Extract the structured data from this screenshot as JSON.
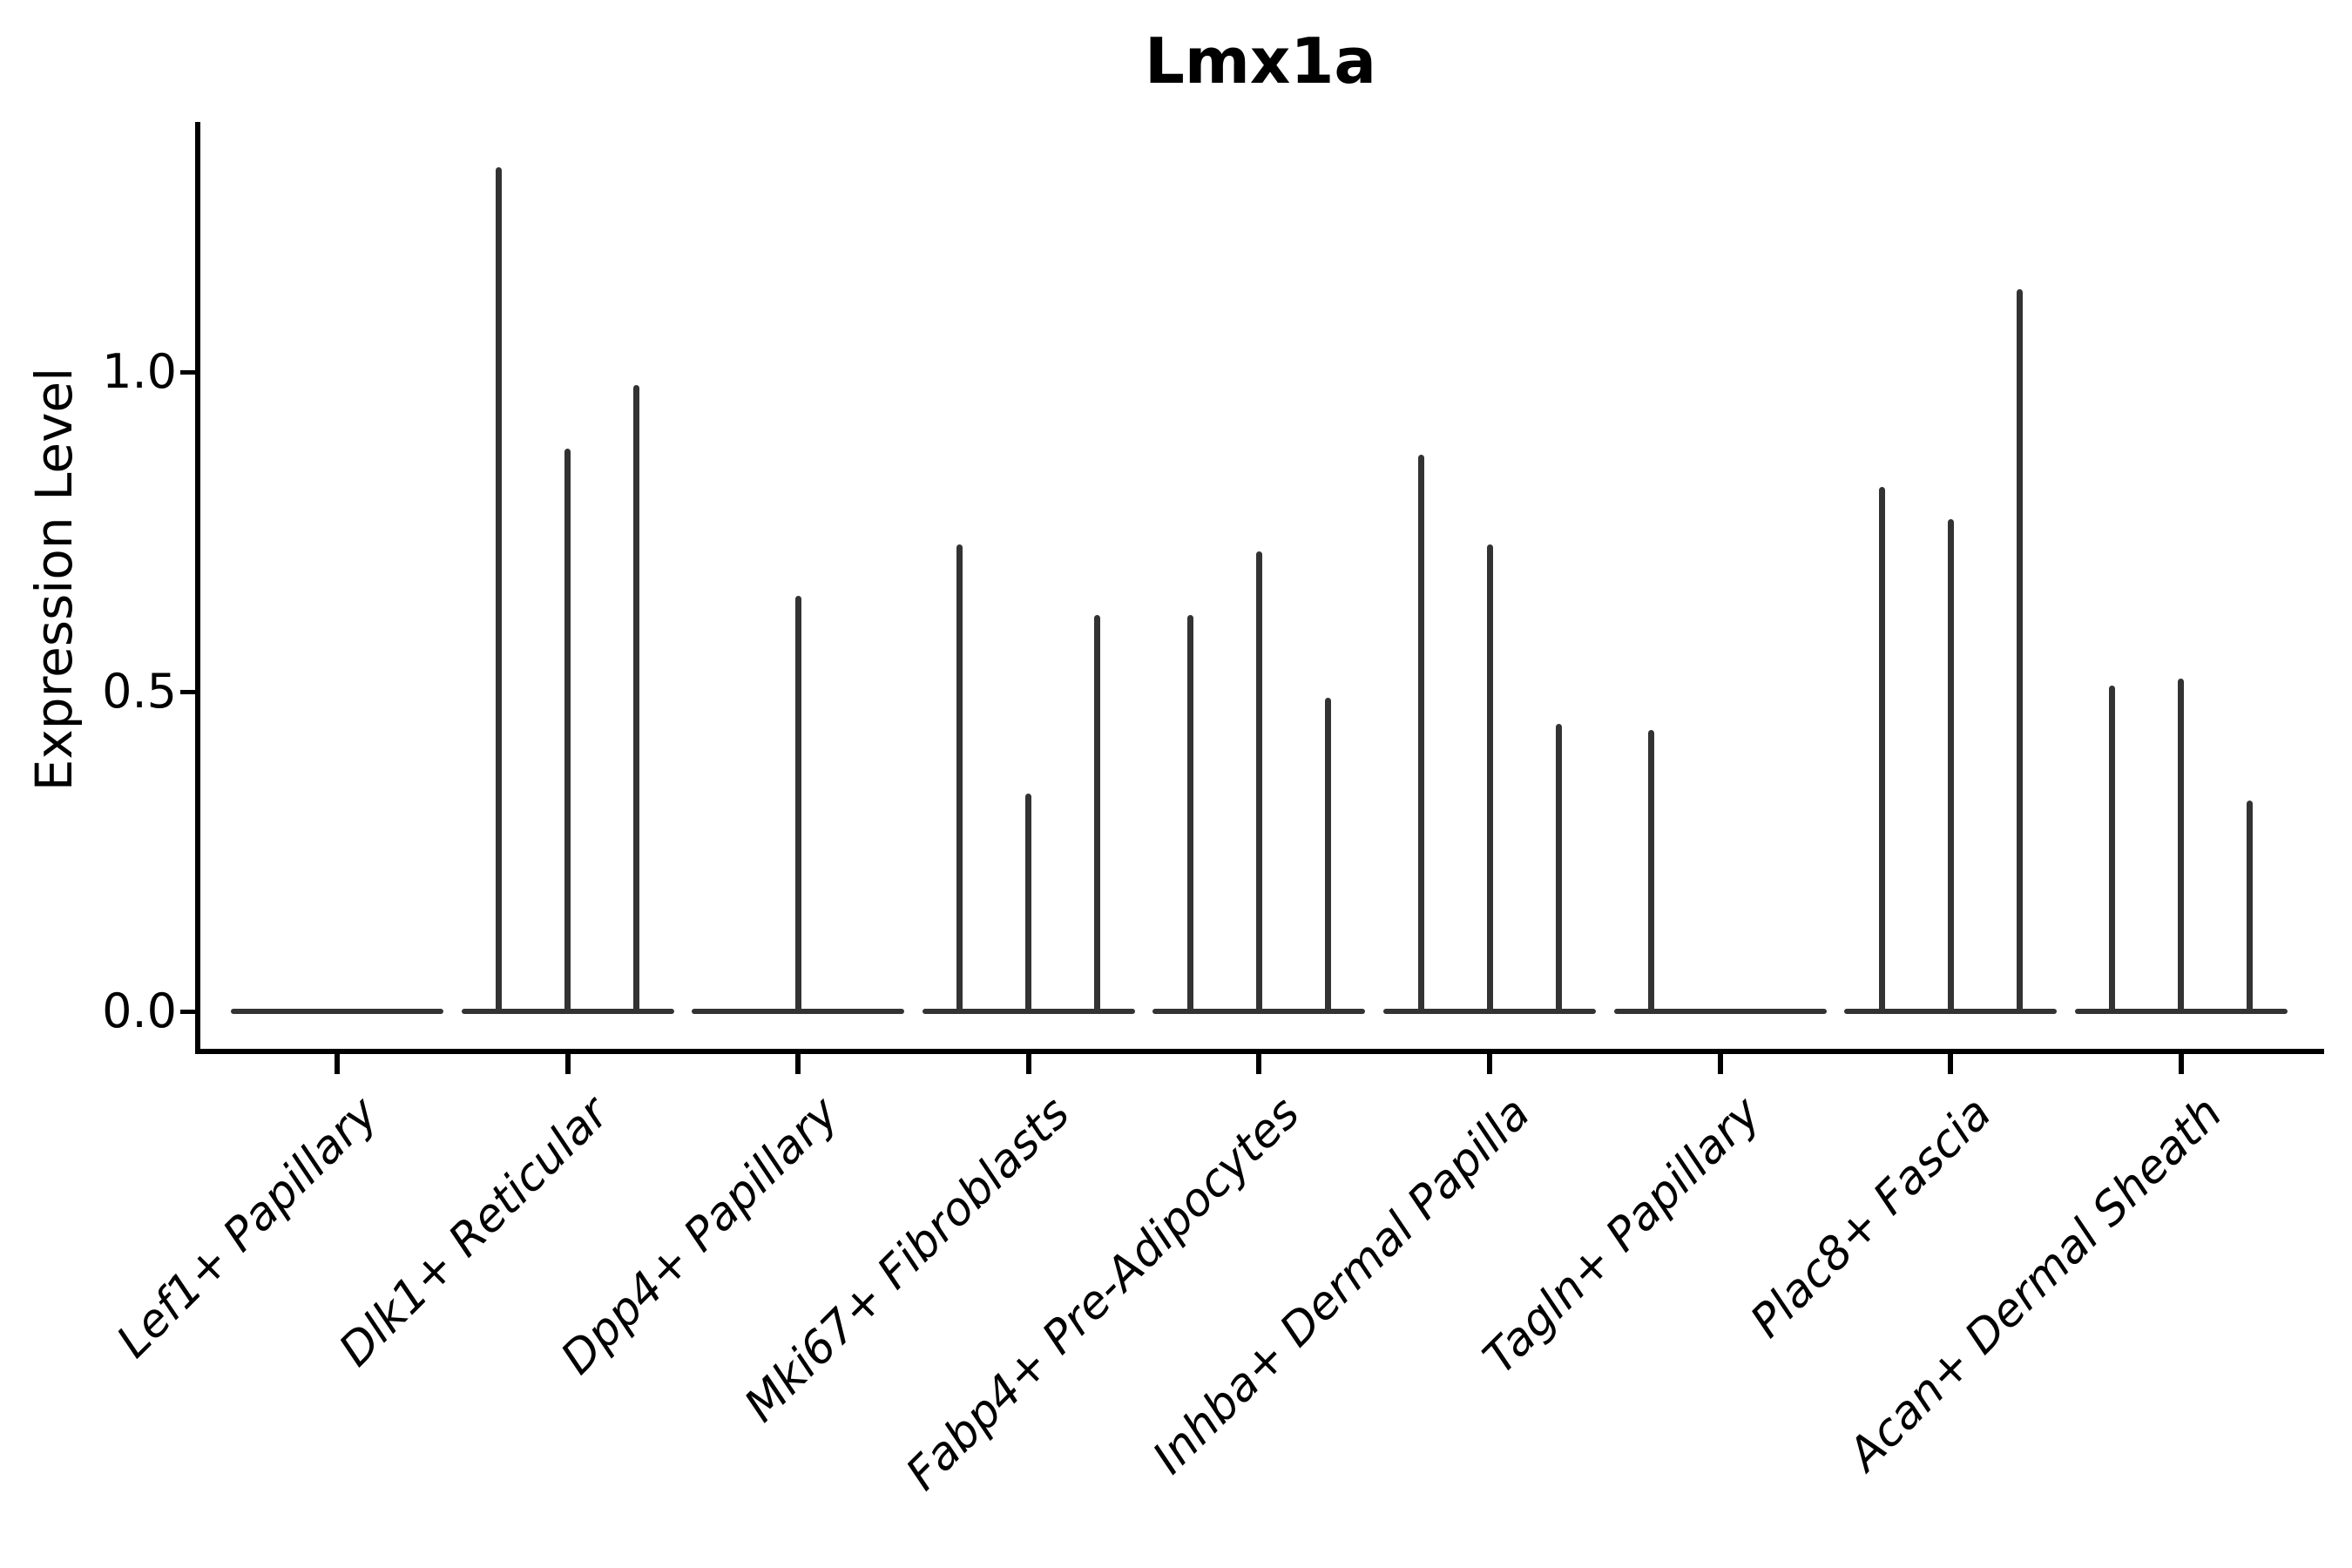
{
  "title": "Lmx1a",
  "colors": {
    "ink": "#000000",
    "violin": "#333333",
    "background": "#ffffff"
  },
  "chart_data": {
    "type": "violin",
    "title": "Lmx1a",
    "xlabel": "",
    "ylabel": "Expression Level",
    "ylim": [
      -0.07,
      1.39
    ],
    "yticks": [
      0.0,
      0.5,
      1.0
    ],
    "ytick_labels": [
      "0.0",
      "0.5",
      "1.0"
    ],
    "grid": false,
    "legend": "none",
    "violins_per_category": 3,
    "note": "Each category shows 3 collapsed violins; value is the top of each violin spike (max expression). 0 = flat at baseline.",
    "groups": [
      {
        "label": "Lef1+ Papillary",
        "spike_values": [
          0,
          0,
          0
        ]
      },
      {
        "label": "Dlk1+ Reticular",
        "spike_values": [
          1.32,
          0.88,
          0.98
        ]
      },
      {
        "label": "Dpp4+ Papillary",
        "spike_values": [
          0,
          0.65,
          0
        ]
      },
      {
        "label": "Mki67+ Fibroblasts",
        "spike_values": [
          0.73,
          0.34,
          0.62
        ]
      },
      {
        "label": "Fabp4+ Pre-Adipocytes",
        "spike_values": [
          0.62,
          0.72,
          0.49
        ]
      },
      {
        "label": "Inhba+ Dermal Papilla",
        "spike_values": [
          0.87,
          0.73,
          0.45
        ]
      },
      {
        "label": "Tagln+ Papillary",
        "spike_values": [
          0.44,
          0,
          0
        ]
      },
      {
        "label": "Plac8+ Fascia",
        "spike_values": [
          0.82,
          0.77,
          1.13
        ]
      },
      {
        "label": "Acan+ Dermal Sheath",
        "spike_values": [
          0.51,
          0.52,
          0.33
        ]
      }
    ]
  }
}
